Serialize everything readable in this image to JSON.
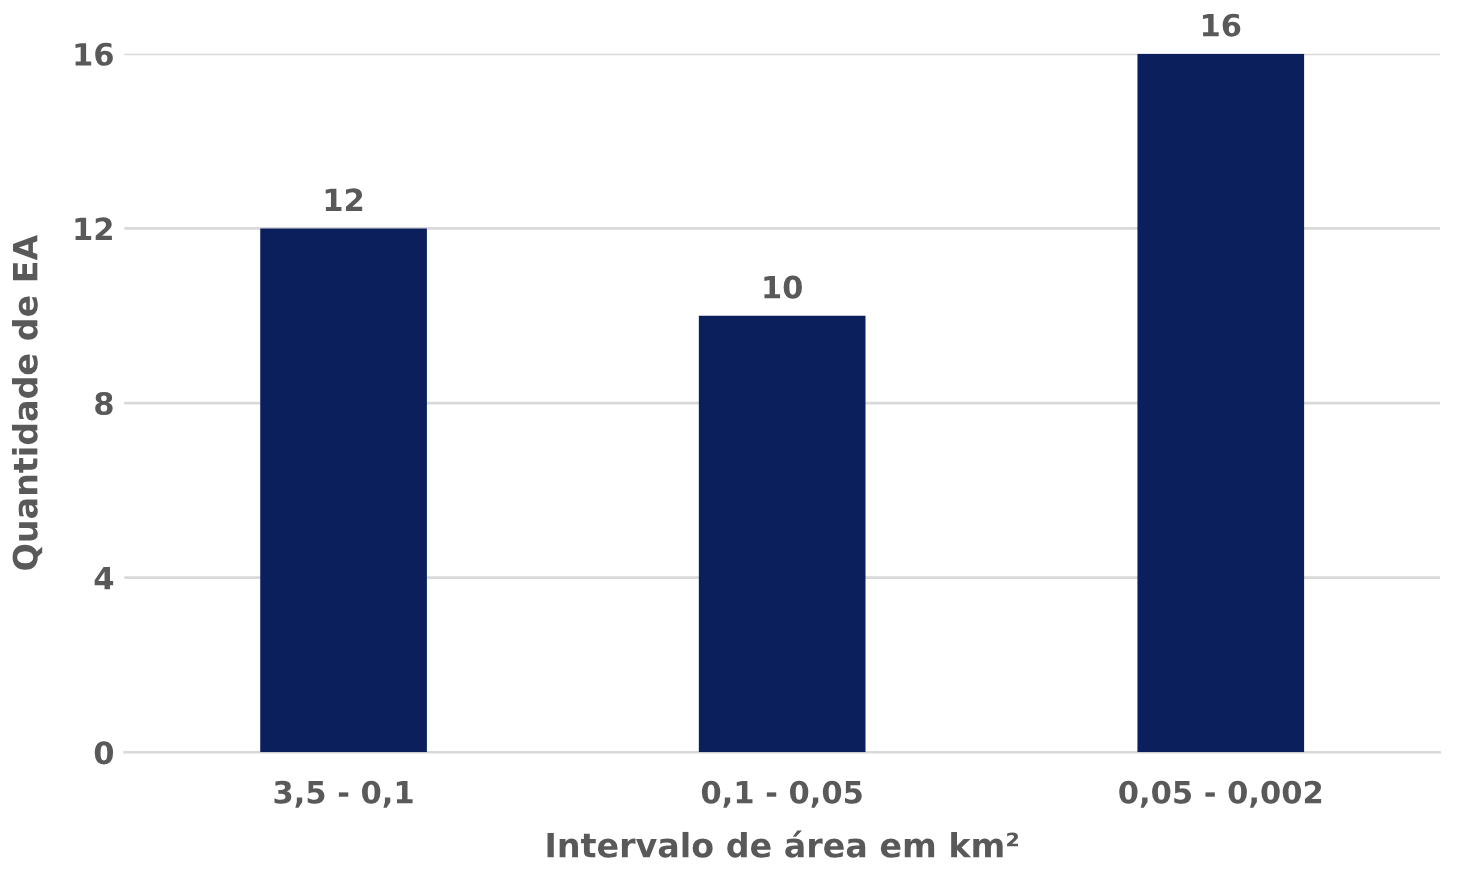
{
  "chart_data": {
    "type": "bar",
    "xlabel": "Intervalo de área em km²",
    "ylabel": "Quantidade de EA",
    "categories": [
      "3,5 - 0,1",
      "0,1 - 0,05",
      "0,05 - 0,002"
    ],
    "values": [
      12,
      10,
      16
    ],
    "color": "#0b1f5c",
    "ylim": [
      0,
      16
    ],
    "yticks": [
      0,
      4,
      8,
      12,
      16
    ],
    "grid": "y",
    "data_labels": true
  }
}
